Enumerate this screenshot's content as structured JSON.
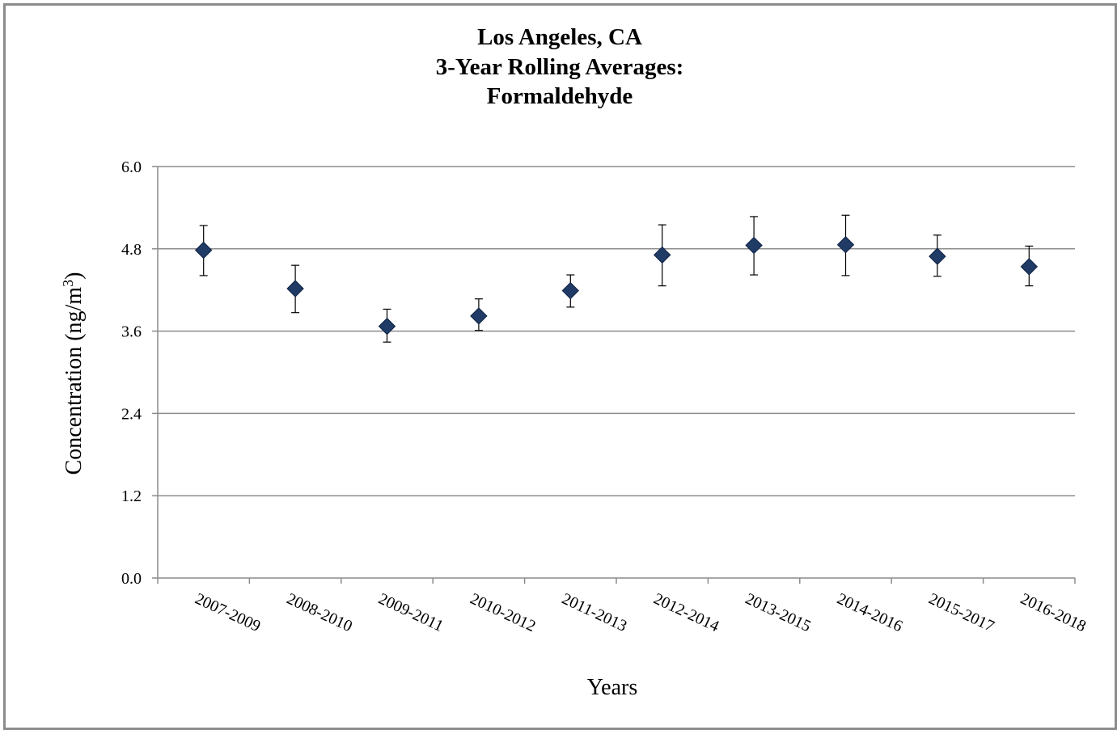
{
  "chart_data": {
    "type": "scatter",
    "title_lines": [
      "Los Angeles, CA",
      "3-Year Rolling Averages:",
      "Formaldehyde"
    ],
    "xlabel": "Years",
    "ylabel_main": "Concentration (ng/m",
    "ylabel_sup": "3",
    "ylabel_close": ")",
    "ylim": [
      0,
      6.0
    ],
    "yticks": [
      "0.0",
      "1.2",
      "2.4",
      "3.6",
      "4.8",
      "6.0"
    ],
    "grid": true,
    "categories": [
      "2007-2009",
      "2008-2010",
      "2009-2011",
      "2010-2012",
      "2011-2013",
      "2012-2014",
      "2013-2015",
      "2014-2016",
      "2015-2017",
      "2016-2018"
    ],
    "values": [
      4.78,
      4.22,
      3.67,
      3.82,
      4.19,
      4.71,
      4.85,
      4.86,
      4.69,
      4.54
    ],
    "error_low": [
      4.41,
      3.87,
      3.44,
      3.61,
      3.95,
      4.26,
      4.42,
      4.41,
      4.4,
      4.26
    ],
    "error_high": [
      5.14,
      4.56,
      3.92,
      4.07,
      4.42,
      5.15,
      5.27,
      5.29,
      5.0,
      4.84
    ],
    "marker_color": "#1f3b66",
    "grid_color": "#8c8c8c"
  }
}
